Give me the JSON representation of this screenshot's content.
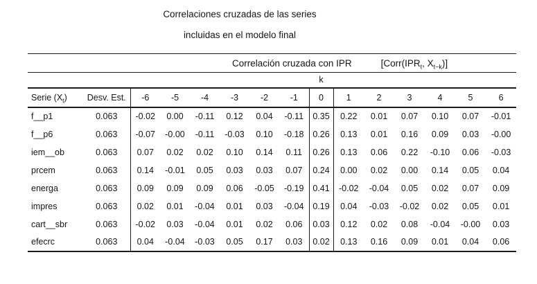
{
  "title": {
    "line1": "Correlaciones cruzadas de las series",
    "line2": "incluidas en el modelo final"
  },
  "table": {
    "group_header": {
      "label": "Correlación cruzada con IPR",
      "formula": {
        "p1": "[Corr(IPR",
        "sub1": "t",
        "p2": ", X",
        "sub2": "t−k",
        "p3": ")]"
      }
    },
    "k_header": "k",
    "columns": {
      "serie": {
        "p1": "Serie (X",
        "sub": "t",
        "p2": ")"
      },
      "desv": "Desv. Est.",
      "lags": [
        "-6",
        "-5",
        "-4",
        "-3",
        "-2",
        "-1",
        "0",
        "1",
        "2",
        "3",
        "4",
        "5",
        "6"
      ]
    },
    "rows": [
      {
        "serie": "f__p1",
        "desv": "0.063",
        "values": [
          "-0.02",
          "0.00",
          "-0.11",
          "0.12",
          "0.04",
          "-0.11",
          "0.35",
          "0.22",
          "0.01",
          "0.07",
          "0.10",
          "0.07",
          "-0.01"
        ]
      },
      {
        "serie": "f__p6",
        "desv": "0.063",
        "values": [
          "-0.07",
          "-0.00",
          "-0.11",
          "-0.03",
          "0.10",
          "-0.18",
          "0.26",
          "0.13",
          "0.01",
          "0.16",
          "0.09",
          "0.03",
          "-0.00"
        ]
      },
      {
        "serie": "iem__ob",
        "desv": "0.063",
        "values": [
          "0.07",
          "0.02",
          "0.02",
          "0.10",
          "0.14",
          "0.11",
          "0.26",
          "0.13",
          "0.06",
          "0.22",
          "-0.10",
          "0.06",
          "-0.03"
        ]
      },
      {
        "serie": "prcem",
        "desv": "0.063",
        "values": [
          "0.14",
          "-0.01",
          "0.05",
          "0.03",
          "0.03",
          "0.07",
          "0.24",
          "0.00",
          "0.02",
          "0.00",
          "0.14",
          "0.05",
          "0.04"
        ]
      },
      {
        "serie": "energa",
        "desv": "0.063",
        "values": [
          "0.09",
          "0.09",
          "0.09",
          "0.06",
          "-0.05",
          "-0.19",
          "0.41",
          "-0.02",
          "-0.04",
          "0.05",
          "0.02",
          "0.07",
          "0.09"
        ]
      },
      {
        "serie": "impres",
        "desv": "0.063",
        "values": [
          "0.02",
          "0.01",
          "-0.04",
          "0.01",
          "0.03",
          "-0.04",
          "0.19",
          "0.04",
          "-0.03",
          "-0.02",
          "0.02",
          "0.05",
          "0.01"
        ]
      },
      {
        "serie": "cart__sbr",
        "desv": "0.063",
        "values": [
          "-0.02",
          "0.03",
          "-0.04",
          "0.01",
          "0.02",
          "0.06",
          "0.03",
          "0.12",
          "0.02",
          "0.08",
          "-0.04",
          "-0.00",
          "0.03"
        ]
      },
      {
        "serie": "efecrc",
        "desv": "0.063",
        "values": [
          "0.04",
          "-0.04",
          "-0.03",
          "0.05",
          "0.17",
          "0.03",
          "0.02",
          "0.13",
          "0.16",
          "0.09",
          "0.01",
          "0.04",
          "0.06"
        ]
      }
    ]
  }
}
